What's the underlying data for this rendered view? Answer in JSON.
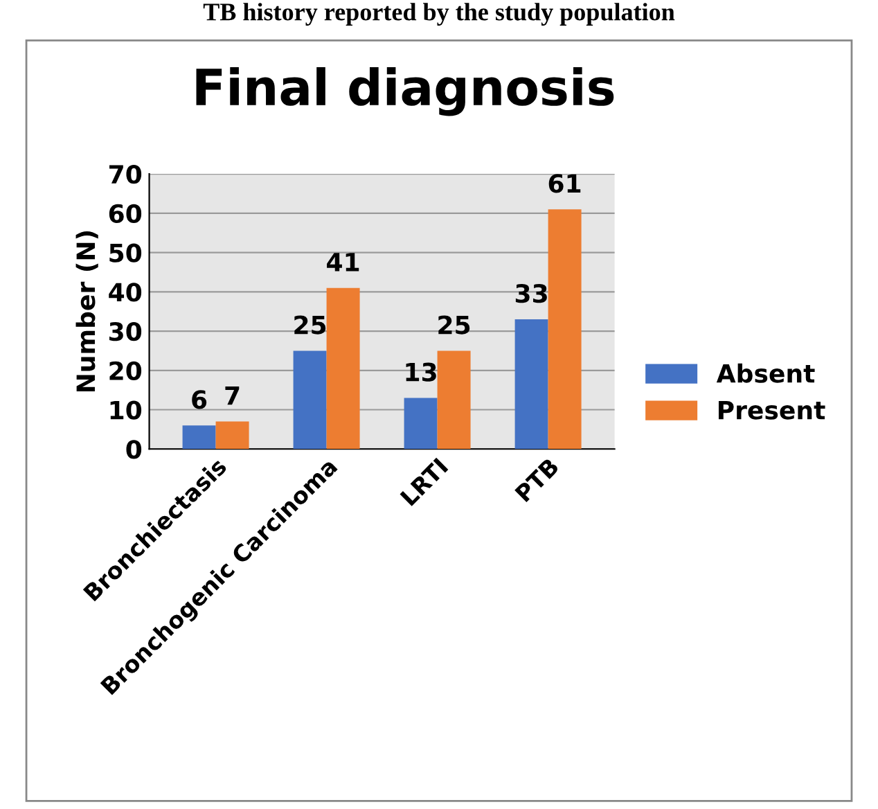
{
  "chart_data": {
    "type": "bar",
    "title": "Final diagnosis",
    "ylabel": "Number (N)",
    "annotations": [
      "TB history reported by the study population"
    ],
    "categories": [
      "Bronchiectasis",
      "Bronchogenic Carcinoma",
      "LRTI",
      "PTB"
    ],
    "series": [
      {
        "name": "Absent",
        "color": "#4472c4",
        "values": [
          6,
          25,
          13,
          33
        ]
      },
      {
        "name": "Present",
        "color": "#ed7d31",
        "values": [
          7,
          41,
          25,
          61
        ]
      }
    ],
    "ylim": [
      0,
      70
    ],
    "yticks": [
      0,
      10,
      20,
      30,
      40,
      50,
      60,
      70
    ],
    "grid": "y",
    "legend": "right",
    "data_labels": true
  }
}
